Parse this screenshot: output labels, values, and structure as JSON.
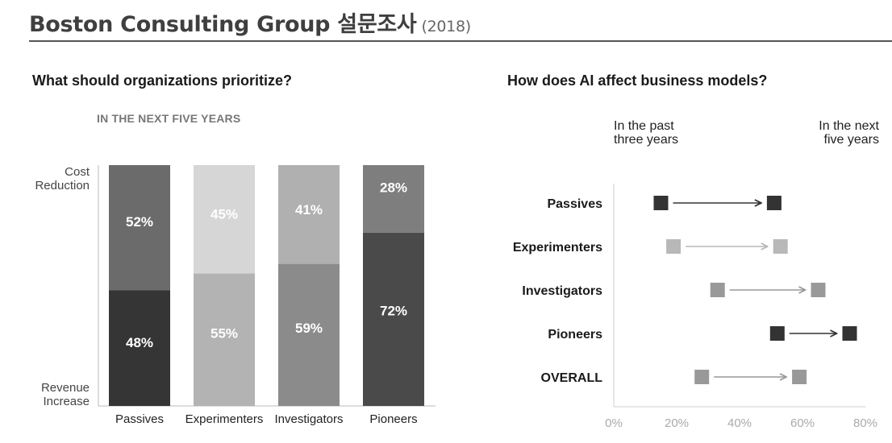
{
  "header": {
    "title": "Boston Consulting Group 설문조사",
    "year": "(2018)"
  },
  "chart_data": [
    {
      "type": "bar",
      "stacked": true,
      "title": "What should organizations prioritize?",
      "subtitle": "IN THE NEXT FIVE YEARS",
      "top_label": "Cost Reduction",
      "bottom_label": "Revenue Increase",
      "categories": [
        "Passives",
        "Experimenters",
        "Investigators",
        "Pioneers"
      ],
      "series": [
        {
          "name": "Revenue Increase",
          "values": [
            48,
            55,
            59,
            72
          ],
          "labels": [
            "48%",
            "55%",
            "59%",
            "72%"
          ],
          "colors": [
            "#353535",
            "#b3b3b3",
            "#8b8b8b",
            "#4a4a4a"
          ],
          "text_colors": [
            "#ffffff",
            "#ffffff",
            "#ffffff",
            "#ffffff"
          ]
        },
        {
          "name": "Cost Reduction",
          "values": [
            52,
            45,
            41,
            28
          ],
          "labels": [
            "52%",
            "45%",
            "41%",
            "28%"
          ],
          "colors": [
            "#6b6b6b",
            "#d6d6d6",
            "#b0b0b0",
            "#7e7e7e"
          ],
          "text_colors": [
            "#ffffff",
            "#ffffff",
            "#ffffff",
            "#ffffff"
          ]
        }
      ],
      "ylim": [
        0,
        100
      ]
    },
    {
      "type": "scatter",
      "title": "How does AI affect business models?",
      "legend_from": "In the past three years",
      "legend_to": "In the next five years",
      "categories": [
        "Passives",
        "Experimenters",
        "Investigators",
        "Pioneers",
        "OVERALL"
      ],
      "from_values": [
        15,
        19,
        33,
        52,
        28
      ],
      "to_values": [
        51,
        53,
        65,
        75,
        59
      ],
      "colors": [
        "#333333",
        "#b8b8b8",
        "#999999",
        "#333333",
        "#999999"
      ],
      "xlim": [
        0,
        80
      ],
      "xticks": [
        "0%",
        "20%",
        "40%",
        "60%",
        "80%"
      ]
    }
  ]
}
